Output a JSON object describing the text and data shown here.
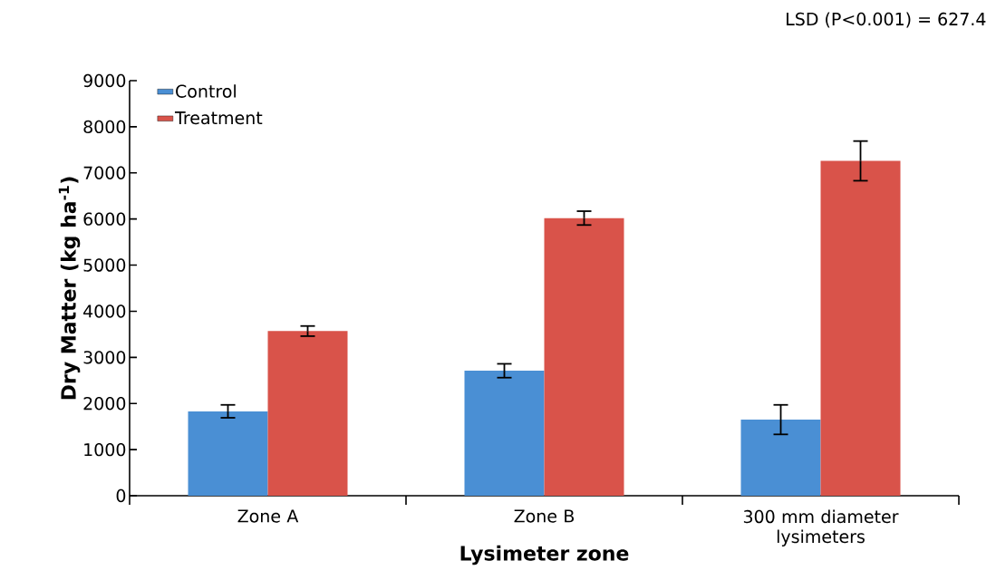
{
  "chart_data": {
    "type": "bar",
    "xlabel": "Lysimeter zone",
    "ylabel": "Dry Matter (kg ha$^{-1}$)",
    "categories": [
      "Zone A",
      "Zone B",
      "300 mm diameter lysimeters"
    ],
    "series": [
      {
        "name": "Control",
        "color": "#4a8fd4",
        "values": [
          1830,
          2710,
          1650
        ],
        "errors": [
          140,
          150,
          320
        ]
      },
      {
        "name": "Treatment",
        "color": "#d9534a",
        "values": [
          3570,
          6020,
          7260
        ],
        "errors": [
          110,
          150,
          430
        ]
      }
    ],
    "ylim": [
      0,
      9000
    ],
    "yticks": [
      0,
      1000,
      2000,
      3000,
      4000,
      5000,
      6000,
      7000,
      8000,
      9000
    ],
    "legend": "top left",
    "annotations": [
      "LSD (P<0.001) = 627.4"
    ]
  }
}
